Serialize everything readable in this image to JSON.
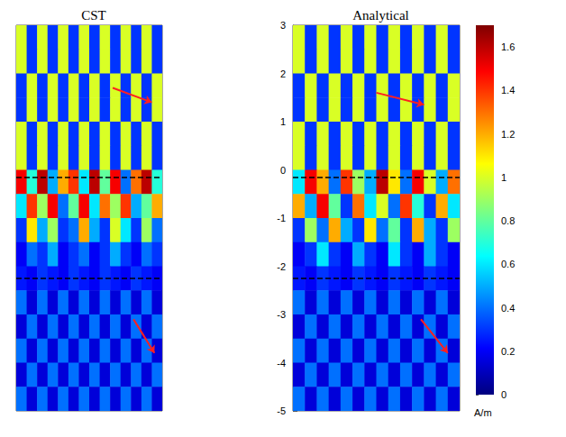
{
  "chart_data": [
    {
      "type": "heatmap",
      "title": "CST",
      "tick_labels": false,
      "xlim": [
        0,
        2.8
      ],
      "ylim": [
        -5,
        3
      ],
      "x": [
        0.1,
        0.3,
        0.5,
        0.7,
        0.9,
        1.1,
        1.3,
        1.5,
        1.7,
        1.9,
        2.1,
        2.3,
        2.5,
        2.7
      ],
      "y": [
        2.75,
        2.25,
        1.75,
        1.25,
        0.75,
        0.25,
        -0.25,
        -0.75,
        -1.25,
        -1.75,
        -2.25,
        -2.75,
        -3.25,
        -3.75,
        -4.25,
        -4.75
      ],
      "z": [
        [
          1.0,
          0.3,
          1.0,
          0.3,
          1.0,
          0.3,
          1.0,
          0.3,
          1.0,
          0.3,
          1.0,
          0.3,
          1.0,
          0.3
        ],
        [
          1.0,
          0.3,
          1.0,
          0.3,
          1.0,
          0.3,
          1.0,
          0.3,
          1.0,
          0.3,
          1.0,
          0.3,
          1.0,
          0.3
        ],
        [
          0.3,
          1.0,
          0.3,
          1.0,
          0.3,
          1.0,
          0.3,
          1.0,
          0.3,
          1.0,
          0.3,
          1.0,
          0.3,
          1.0
        ],
        [
          0.3,
          1.0,
          0.3,
          1.0,
          0.3,
          1.0,
          0.3,
          1.0,
          0.3,
          1.0,
          0.3,
          1.0,
          0.3,
          1.0
        ],
        [
          1.0,
          0.3,
          1.0,
          0.3,
          1.0,
          0.3,
          1.0,
          0.3,
          1.0,
          0.3,
          1.0,
          0.3,
          1.0,
          0.3
        ],
        [
          1.0,
          0.3,
          1.0,
          0.3,
          1.0,
          0.3,
          1.0,
          0.3,
          1.0,
          0.3,
          1.0,
          0.3,
          1.0,
          0.3
        ],
        [
          1.5,
          0.7,
          1.6,
          0.5,
          1.2,
          1.4,
          0.6,
          1.6,
          0.8,
          1.5,
          0.4,
          1.3,
          1.6,
          0.7
        ],
        [
          0.6,
          1.4,
          0.9,
          1.5,
          0.4,
          0.8,
          1.5,
          0.6,
          1.3,
          0.9,
          1.4,
          0.5,
          0.8,
          1.2
        ],
        [
          0.3,
          1.1,
          0.5,
          0.9,
          0.3,
          0.4,
          1.2,
          0.5,
          0.3,
          1.0,
          0.6,
          0.3,
          0.9,
          0.4
        ],
        [
          0.2,
          0.4,
          0.3,
          0.5,
          0.2,
          0.3,
          0.4,
          0.2,
          0.3,
          0.5,
          0.3,
          0.2,
          0.4,
          0.3
        ],
        [
          0.25,
          0.2,
          0.3,
          0.25,
          0.2,
          0.3,
          0.25,
          0.2,
          0.3,
          0.25,
          0.2,
          0.3,
          0.25,
          0.2
        ],
        [
          0.4,
          0.15,
          0.4,
          0.15,
          0.4,
          0.15,
          0.4,
          0.15,
          0.4,
          0.15,
          0.4,
          0.15,
          0.4,
          0.15
        ],
        [
          0.15,
          0.4,
          0.15,
          0.4,
          0.15,
          0.4,
          0.15,
          0.4,
          0.15,
          0.4,
          0.15,
          0.4,
          0.15,
          0.4
        ],
        [
          0.4,
          0.15,
          0.4,
          0.15,
          0.4,
          0.15,
          0.4,
          0.15,
          0.4,
          0.15,
          0.4,
          0.15,
          0.4,
          0.15
        ],
        [
          0.15,
          0.4,
          0.15,
          0.4,
          0.15,
          0.4,
          0.15,
          0.4,
          0.15,
          0.4,
          0.15,
          0.4,
          0.15,
          0.4
        ],
        [
          0.4,
          0.15,
          0.4,
          0.15,
          0.4,
          0.15,
          0.4,
          0.15,
          0.4,
          0.15,
          0.4,
          0.15,
          0.4,
          0.15
        ]
      ],
      "boundaries": [
        -0.15,
        -2.25
      ],
      "arrows": [
        {
          "from": [
            1.85,
            1.7
          ],
          "to": [
            2.6,
            1.4
          ]
        },
        {
          "from": [
            2.25,
            -3.1
          ],
          "to": [
            2.65,
            -3.8
          ]
        }
      ]
    },
    {
      "type": "heatmap",
      "title": "Analytical",
      "tick_labels": "y",
      "xlim": [
        0,
        2.8
      ],
      "ylim": [
        -5,
        3
      ],
      "yticks": [
        -5,
        -4,
        -3,
        -2,
        -1,
        0,
        1,
        2,
        3
      ],
      "x": [
        0.1,
        0.3,
        0.5,
        0.7,
        0.9,
        1.1,
        1.3,
        1.5,
        1.7,
        1.9,
        2.1,
        2.3,
        2.5,
        2.7
      ],
      "y": [
        2.75,
        2.25,
        1.75,
        1.25,
        0.75,
        0.25,
        -0.25,
        -0.75,
        -1.25,
        -1.75,
        -2.25,
        -2.75,
        -3.25,
        -3.75,
        -4.25,
        -4.75
      ],
      "z": [
        [
          1.0,
          0.3,
          1.0,
          0.3,
          1.0,
          0.3,
          1.0,
          0.3,
          1.0,
          0.3,
          1.0,
          0.3,
          1.0,
          0.3
        ],
        [
          1.0,
          0.3,
          1.0,
          0.3,
          1.0,
          0.3,
          1.0,
          0.3,
          1.0,
          0.3,
          1.0,
          0.3,
          1.0,
          0.3
        ],
        [
          0.3,
          1.0,
          0.3,
          1.0,
          0.3,
          1.0,
          0.3,
          1.0,
          0.3,
          1.0,
          0.3,
          1.0,
          0.3,
          1.0
        ],
        [
          0.3,
          1.0,
          0.3,
          1.0,
          0.3,
          1.0,
          0.3,
          1.0,
          0.3,
          1.0,
          0.3,
          1.0,
          0.3,
          1.0
        ],
        [
          1.0,
          0.3,
          1.0,
          0.3,
          1.0,
          0.3,
          1.0,
          0.3,
          1.0,
          0.3,
          1.0,
          0.3,
          1.0,
          0.3
        ],
        [
          1.0,
          0.3,
          1.0,
          0.3,
          1.0,
          0.3,
          1.0,
          0.3,
          1.0,
          0.3,
          1.0,
          0.3,
          1.0,
          0.3
        ],
        [
          0.6,
          1.5,
          1.2,
          0.4,
          1.4,
          0.9,
          0.5,
          1.6,
          1.1,
          0.4,
          1.5,
          1.0,
          0.5,
          1.3
        ],
        [
          1.2,
          0.5,
          1.5,
          0.8,
          0.3,
          1.3,
          0.6,
          1.0,
          0.4,
          1.4,
          0.7,
          0.3,
          1.2,
          0.6
        ],
        [
          0.3,
          0.9,
          0.4,
          1.2,
          0.5,
          0.3,
          1.1,
          0.4,
          0.8,
          0.3,
          1.2,
          0.5,
          0.3,
          0.9
        ],
        [
          0.2,
          0.3,
          0.6,
          0.3,
          0.2,
          0.5,
          0.3,
          0.2,
          0.6,
          0.3,
          0.2,
          0.5,
          0.3,
          0.2
        ],
        [
          0.25,
          0.2,
          0.3,
          0.25,
          0.2,
          0.3,
          0.25,
          0.2,
          0.3,
          0.25,
          0.2,
          0.3,
          0.25,
          0.2
        ],
        [
          0.4,
          0.15,
          0.4,
          0.15,
          0.4,
          0.15,
          0.4,
          0.15,
          0.4,
          0.15,
          0.4,
          0.15,
          0.4,
          0.15
        ],
        [
          0.15,
          0.4,
          0.15,
          0.4,
          0.15,
          0.4,
          0.15,
          0.4,
          0.15,
          0.4,
          0.15,
          0.4,
          0.15,
          0.4
        ],
        [
          0.4,
          0.15,
          0.4,
          0.15,
          0.4,
          0.15,
          0.4,
          0.15,
          0.4,
          0.15,
          0.4,
          0.15,
          0.4,
          0.15
        ],
        [
          0.15,
          0.4,
          0.15,
          0.4,
          0.15,
          0.4,
          0.15,
          0.4,
          0.15,
          0.4,
          0.15,
          0.4,
          0.15,
          0.4
        ],
        [
          0.4,
          0.15,
          0.4,
          0.15,
          0.4,
          0.15,
          0.4,
          0.15,
          0.4,
          0.15,
          0.4,
          0.15,
          0.4,
          0.15
        ]
      ],
      "boundaries": [
        -0.15,
        -2.25
      ],
      "arrows": [
        {
          "from": [
            1.4,
            1.6
          ],
          "to": [
            2.2,
            1.35
          ]
        },
        {
          "from": [
            2.15,
            -3.1
          ],
          "to": [
            2.6,
            -3.8
          ]
        }
      ],
      "colorbar": {
        "range": [
          0,
          1.7
        ],
        "ticks": [
          0,
          0.2,
          0.4,
          0.6,
          0.8,
          1,
          1.2,
          1.4,
          1.6
        ],
        "label": "A/m"
      }
    }
  ]
}
